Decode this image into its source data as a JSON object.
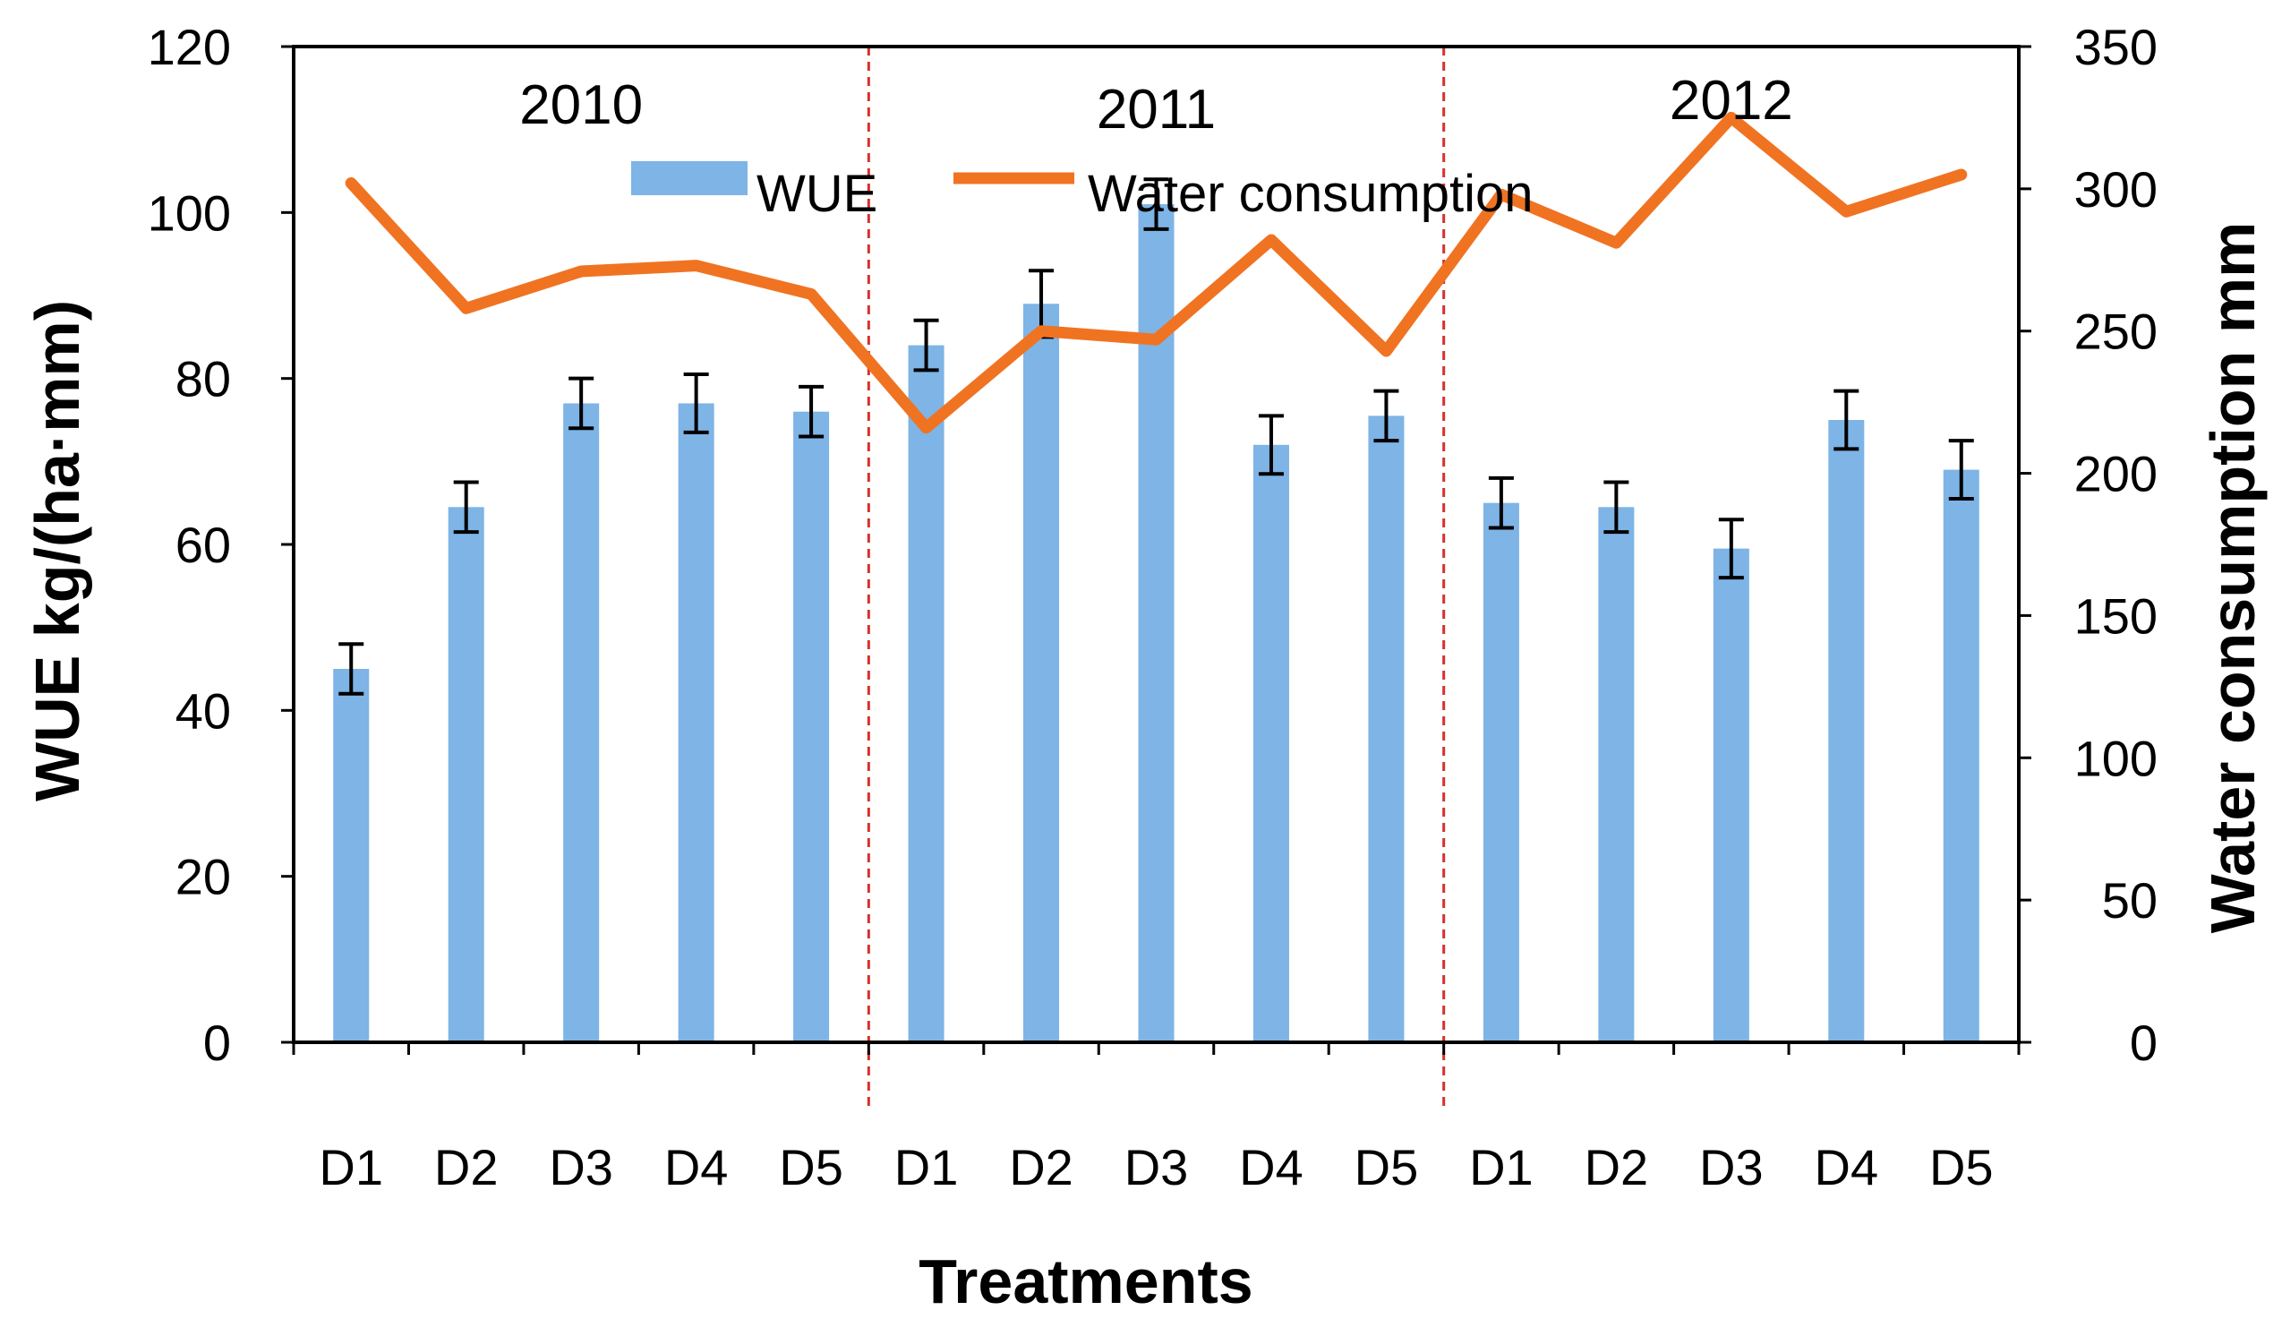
{
  "chart_data": {
    "type": "bar",
    "categories": [
      "D1",
      "D2",
      "D3",
      "D4",
      "D5",
      "D1",
      "D2",
      "D3",
      "D4",
      "D5",
      "D1",
      "D2",
      "D3",
      "D4",
      "D5"
    ],
    "groups": [
      "2010",
      "2011",
      "2012"
    ],
    "xlabel": "Treatments",
    "ylabel": "WUE kg/(ha·mm)",
    "y2label": "Water consumption mm",
    "ylim": [
      0,
      120
    ],
    "y2lim": [
      0,
      350
    ],
    "yticks": [
      "0",
      "20",
      "40",
      "60",
      "80",
      "100",
      "120"
    ],
    "y2ticks": [
      "0",
      "50",
      "100",
      "150",
      "200",
      "250",
      "300",
      "350"
    ],
    "legend_placement": "top-center",
    "series": [
      {
        "name": "WUE",
        "type": "bar",
        "axis": "left",
        "color": "#7EB4E6",
        "values": [
          45,
          64.5,
          77,
          77,
          76,
          84,
          89,
          101,
          72,
          75.5,
          65,
          64.5,
          59.5,
          75,
          69
        ],
        "errors": [
          3,
          3,
          3,
          3.5,
          3,
          3,
          4,
          3,
          3.5,
          3,
          3,
          3,
          3.5,
          3.5,
          3.5
        ]
      },
      {
        "name": "Water consumption",
        "type": "line",
        "axis": "right",
        "color": "#F07322",
        "values": [
          302,
          258,
          271,
          273,
          263,
          216,
          250,
          247,
          282,
          243,
          298,
          281,
          325,
          292,
          305
        ]
      }
    ]
  }
}
